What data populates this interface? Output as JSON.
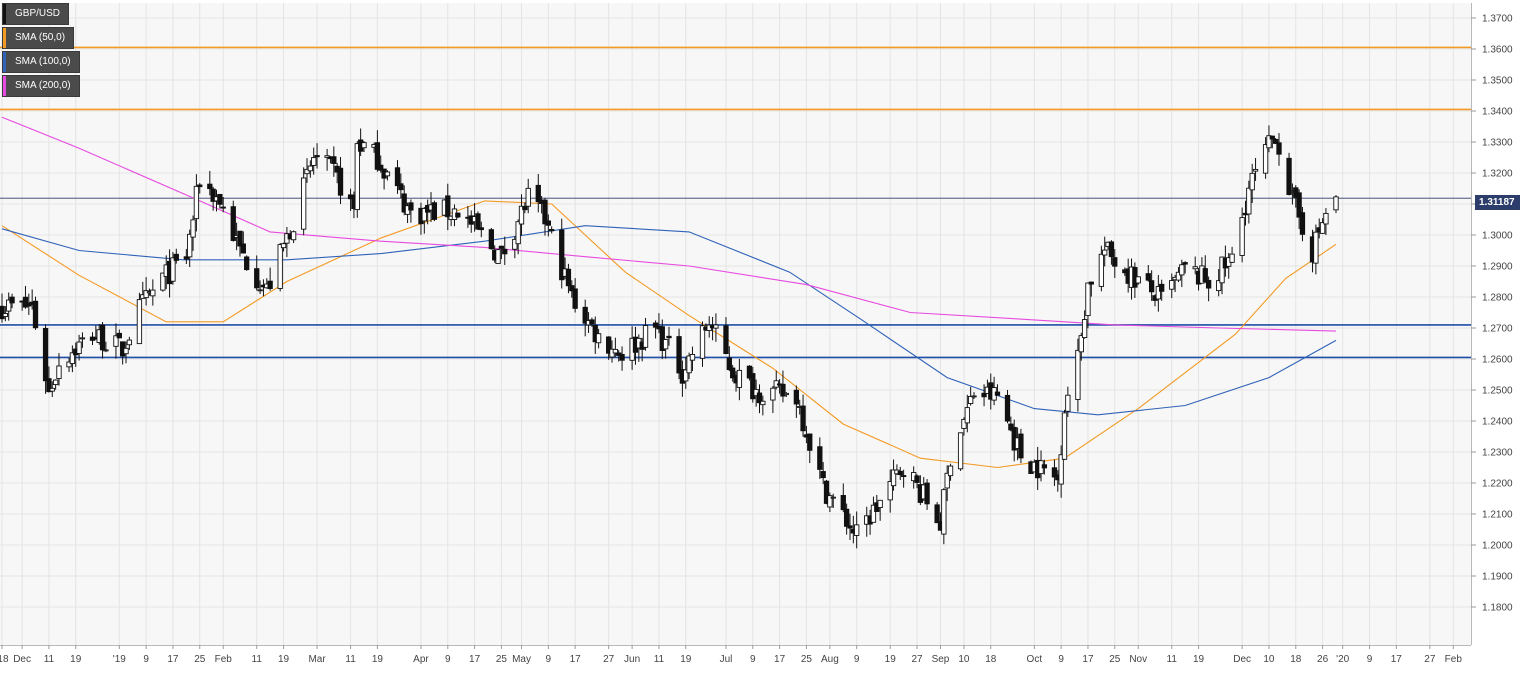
{
  "legend": [
    {
      "label": "GBP/USD",
      "color": "#111111"
    },
    {
      "label": "SMA (50,0)",
      "color": "#f39a24"
    },
    {
      "label": "SMA (100,0)",
      "color": "#2f62b8"
    },
    {
      "label": "SMA (200,0)",
      "color": "#e74ae0"
    }
  ],
  "current_price": "1.31187",
  "colors": {
    "background": "#f7f7f7",
    "grid": "#e4e4e4",
    "candle_up": "#ffffff",
    "candle_down": "#111111",
    "resistance_line": "#f39a24",
    "support_line": "#1f4fa8",
    "price_line": "#2c3d6b",
    "price_tag": "#2c3d6b"
  },
  "chart_data": {
    "type": "candlestick",
    "symbol": "GBP/USD",
    "timeframe": "daily",
    "x_range": [
      "2018-11-27",
      "2020-02-05"
    ],
    "ylim": [
      1.175,
      1.375
    ],
    "grid": true,
    "legend_placement": "top-left",
    "y_ticks": [
      "1.1800",
      "1.1900",
      "1.2000",
      "1.2100",
      "1.2200",
      "1.2300",
      "1.2400",
      "1.2500",
      "1.2600",
      "1.2700",
      "1.2800",
      "1.2900",
      "1.3000",
      "1.3100",
      "1.3200",
      "1.3300",
      "1.3400",
      "1.3500",
      "1.3600",
      "1.3700"
    ],
    "x_ticks": [
      {
        "date": "2018-11-27",
        "label": "'18"
      },
      {
        "date": "2018-12-03",
        "label": "Dec"
      },
      {
        "date": "2018-12-11",
        "label": "11"
      },
      {
        "date": "2018-12-19",
        "label": "19"
      },
      {
        "date": "2019-01-01",
        "label": "'19"
      },
      {
        "date": "2019-01-09",
        "label": "9"
      },
      {
        "date": "2019-01-17",
        "label": "17"
      },
      {
        "date": "2019-01-25",
        "label": "25"
      },
      {
        "date": "2019-02-01",
        "label": "Feb"
      },
      {
        "date": "2019-02-11",
        "label": "11"
      },
      {
        "date": "2019-02-19",
        "label": "19"
      },
      {
        "date": "2019-03-01",
        "label": "Mar"
      },
      {
        "date": "2019-03-11",
        "label": "11"
      },
      {
        "date": "2019-03-19",
        "label": "19"
      },
      {
        "date": "2019-04-01",
        "label": "Apr"
      },
      {
        "date": "2019-04-09",
        "label": "9"
      },
      {
        "date": "2019-04-17",
        "label": "17"
      },
      {
        "date": "2019-04-25",
        "label": "25"
      },
      {
        "date": "2019-05-01",
        "label": "May"
      },
      {
        "date": "2019-05-09",
        "label": "9"
      },
      {
        "date": "2019-05-17",
        "label": "17"
      },
      {
        "date": "2019-05-27",
        "label": "27"
      },
      {
        "date": "2019-06-03",
        "label": "Jun"
      },
      {
        "date": "2019-06-11",
        "label": "11"
      },
      {
        "date": "2019-06-19",
        "label": "19"
      },
      {
        "date": "2019-07-01",
        "label": "Jul"
      },
      {
        "date": "2019-07-09",
        "label": "9"
      },
      {
        "date": "2019-07-17",
        "label": "17"
      },
      {
        "date": "2019-07-25",
        "label": "25"
      },
      {
        "date": "2019-08-01",
        "label": "Aug"
      },
      {
        "date": "2019-08-09",
        "label": "9"
      },
      {
        "date": "2019-08-19",
        "label": "19"
      },
      {
        "date": "2019-08-27",
        "label": "27"
      },
      {
        "date": "2019-09-03",
        "label": "Sep"
      },
      {
        "date": "2019-09-10",
        "label": "10"
      },
      {
        "date": "2019-09-18",
        "label": "18"
      },
      {
        "date": "2019-10-01",
        "label": "Oct"
      },
      {
        "date": "2019-10-09",
        "label": "9"
      },
      {
        "date": "2019-10-17",
        "label": "17"
      },
      {
        "date": "2019-10-25",
        "label": "25"
      },
      {
        "date": "2019-11-01",
        "label": "Nov"
      },
      {
        "date": "2019-11-11",
        "label": "11"
      },
      {
        "date": "2019-11-19",
        "label": "19"
      },
      {
        "date": "2019-12-02",
        "label": "Dec"
      },
      {
        "date": "2019-12-10",
        "label": "10"
      },
      {
        "date": "2019-12-18",
        "label": "18"
      },
      {
        "date": "2019-12-26",
        "label": "26"
      },
      {
        "date": "2020-01-01",
        "label": "'20"
      },
      {
        "date": "2020-01-09",
        "label": "9"
      },
      {
        "date": "2020-01-17",
        "label": "17"
      },
      {
        "date": "2020-01-27",
        "label": "27"
      },
      {
        "date": "2020-02-03",
        "label": "Feb"
      }
    ],
    "horizontal_levels": [
      {
        "value": 1.3605,
        "kind": "resistance"
      },
      {
        "value": 1.3405,
        "kind": "resistance"
      },
      {
        "value": 1.271,
        "kind": "support"
      },
      {
        "value": 1.2605,
        "kind": "support"
      }
    ],
    "current_price_level": 1.31187,
    "close_path": [
      [
        "2018-11-27",
        1.277
      ],
      [
        "2018-12-06",
        1.277
      ],
      [
        "2018-12-11",
        1.249
      ],
      [
        "2018-12-14",
        1.259
      ],
      [
        "2018-12-24",
        1.268
      ],
      [
        "2019-01-02",
        1.263
      ],
      [
        "2019-01-07",
        1.276
      ],
      [
        "2019-01-14",
        1.286
      ],
      [
        "2019-01-21",
        1.293
      ],
      [
        "2019-01-25",
        1.318
      ],
      [
        "2019-01-31",
        1.311
      ],
      [
        "2019-02-06",
        1.295
      ],
      [
        "2019-02-14",
        1.282
      ],
      [
        "2019-02-22",
        1.305
      ],
      [
        "2019-02-28",
        1.325
      ],
      [
        "2019-03-06",
        1.32
      ],
      [
        "2019-03-12",
        1.308
      ],
      [
        "2019-03-13",
        1.33
      ],
      [
        "2019-03-19",
        1.325
      ],
      [
        "2019-03-29",
        1.307
      ],
      [
        "2019-04-12",
        1.308
      ],
      [
        "2019-04-25",
        1.293
      ],
      [
        "2019-05-03",
        1.312
      ],
      [
        "2019-05-08",
        1.305
      ],
      [
        "2019-05-16",
        1.28
      ],
      [
        "2019-05-24",
        1.267
      ],
      [
        "2019-05-31",
        1.262
      ],
      [
        "2019-06-10",
        1.27
      ],
      [
        "2019-06-18",
        1.256
      ],
      [
        "2019-06-26",
        1.272
      ],
      [
        "2019-07-03",
        1.256
      ],
      [
        "2019-07-10",
        1.25
      ],
      [
        "2019-07-22",
        1.248
      ],
      [
        "2019-07-30",
        1.219
      ],
      [
        "2019-08-09",
        1.203
      ],
      [
        "2019-08-16",
        1.214
      ],
      [
        "2019-08-23",
        1.226
      ],
      [
        "2019-09-03",
        1.207
      ],
      [
        "2019-09-06",
        1.229
      ],
      [
        "2019-09-13",
        1.249
      ],
      [
        "2019-09-20",
        1.248
      ],
      [
        "2019-09-27",
        1.229
      ],
      [
        "2019-10-08",
        1.221
      ],
      [
        "2019-10-10",
        1.245
      ],
      [
        "2019-10-14",
        1.26
      ],
      [
        "2019-10-17",
        1.284
      ],
      [
        "2019-10-22",
        1.295
      ],
      [
        "2019-10-30",
        1.287
      ],
      [
        "2019-11-08",
        1.279
      ],
      [
        "2019-11-15",
        1.289
      ],
      [
        "2019-11-22",
        1.285
      ],
      [
        "2019-11-29",
        1.292
      ],
      [
        "2019-12-04",
        1.315
      ],
      [
        "2019-12-12",
        1.333
      ],
      [
        "2019-12-17",
        1.311
      ],
      [
        "2019-12-23",
        1.295
      ],
      [
        "2019-12-27",
        1.307
      ],
      [
        "2019-12-30",
        1.312
      ]
    ],
    "sma": [
      {
        "name": "SMA (50,0)",
        "color": "#f39a24",
        "points": [
          [
            "2018-11-27",
            1.303
          ],
          [
            "2018-12-20",
            1.287
          ],
          [
            "2019-01-15",
            1.272
          ],
          [
            "2019-02-01",
            1.272
          ],
          [
            "2019-02-20",
            1.285
          ],
          [
            "2019-03-20",
            1.299
          ],
          [
            "2019-04-20",
            1.311
          ],
          [
            "2019-05-10",
            1.31
          ],
          [
            "2019-06-01",
            1.288
          ],
          [
            "2019-06-20",
            1.274
          ],
          [
            "2019-07-15",
            1.257
          ],
          [
            "2019-08-05",
            1.239
          ],
          [
            "2019-08-28",
            1.228
          ],
          [
            "2019-09-20",
            1.225
          ],
          [
            "2019-10-10",
            1.228
          ],
          [
            "2019-11-01",
            1.244
          ],
          [
            "2019-11-30",
            1.268
          ],
          [
            "2019-12-15",
            1.286
          ],
          [
            "2019-12-30",
            1.297
          ]
        ]
      },
      {
        "name": "SMA (100,0)",
        "color": "#2f62b8",
        "points": [
          [
            "2018-11-27",
            1.302
          ],
          [
            "2018-12-20",
            1.295
          ],
          [
            "2019-01-20",
            1.292
          ],
          [
            "2019-02-20",
            1.292
          ],
          [
            "2019-03-20",
            1.294
          ],
          [
            "2019-04-20",
            1.298
          ],
          [
            "2019-05-20",
            1.303
          ],
          [
            "2019-06-20",
            1.301
          ],
          [
            "2019-07-20",
            1.288
          ],
          [
            "2019-08-10",
            1.273
          ],
          [
            "2019-09-05",
            1.254
          ],
          [
            "2019-10-01",
            1.244
          ],
          [
            "2019-10-20",
            1.242
          ],
          [
            "2019-11-15",
            1.245
          ],
          [
            "2019-12-10",
            1.254
          ],
          [
            "2019-12-30",
            1.266
          ]
        ]
      },
      {
        "name": "SMA (200,0)",
        "color": "#e74ae0",
        "points": [
          [
            "2018-11-27",
            1.338
          ],
          [
            "2018-12-20",
            1.328
          ],
          [
            "2019-01-25",
            1.311
          ],
          [
            "2019-02-15",
            1.301
          ],
          [
            "2019-03-20",
            1.298
          ],
          [
            "2019-04-20",
            1.296
          ],
          [
            "2019-05-20",
            1.293
          ],
          [
            "2019-06-20",
            1.29
          ],
          [
            "2019-07-25",
            1.284
          ],
          [
            "2019-08-25",
            1.275
          ],
          [
            "2019-09-25",
            1.273
          ],
          [
            "2019-10-25",
            1.271
          ],
          [
            "2019-11-25",
            1.27
          ],
          [
            "2019-12-30",
            1.269
          ]
        ]
      }
    ]
  }
}
